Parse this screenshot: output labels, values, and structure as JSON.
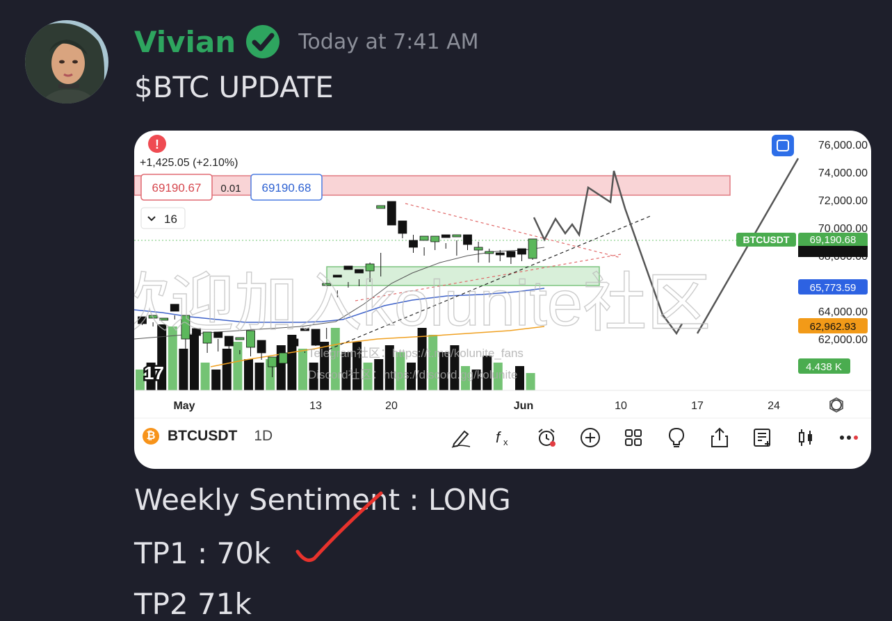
{
  "message": {
    "author": "Vivian",
    "verified_icon": "verified-check-icon",
    "timestamp": "Today at 7:41 AM",
    "title": "$BTC UPDATE",
    "lines": [
      "Weekly Sentiment : LONG",
      "TP1 : 70k",
      "TP2 71k"
    ]
  },
  "chart": {
    "change": "+1,425.05 (+2.10%)",
    "bid": "69190.67",
    "spread": "0.01",
    "ask": "69190.68",
    "interval_toggle": "16",
    "price_axis": [
      "76,000.00",
      "74,000.00",
      "72,000.00",
      "70,000.00",
      "68,000.00",
      "64,000.00",
      "62,000.00"
    ],
    "price_tags": {
      "symbol_tag": "BTCUSDT",
      "last_price": "69,190.68",
      "ma_blue": "65,773.59",
      "ma_orange": "62,962.93",
      "volume": "4.438 K"
    },
    "date_axis": [
      "May",
      "13",
      "20",
      "Jun",
      "10",
      "17",
      "24"
    ],
    "watermark": "欢迎加入kolunite社区",
    "sub_watermark_1": "Telegram社区：https://t.me/kolunite_fans",
    "sub_watermark_2": "Discord社区：https://discord.gg/kolunite",
    "symbol": "BTCUSDT",
    "interval": "1D",
    "toolbar_icons": [
      "pen-icon",
      "fx-icon",
      "alarm-icon",
      "add-icon",
      "grid-icon",
      "idea-icon",
      "share-icon",
      "notes-icon",
      "candles-icon",
      "more-icon"
    ]
  },
  "colors": {
    "background": "#1e1f2b",
    "author": "#2ea55f",
    "bull": "#5cb85c",
    "bear": "#111111",
    "resistance_zone": "#f9d4d6",
    "support_zone": "#d8efd9",
    "annotation_check": "#e8322c"
  }
}
